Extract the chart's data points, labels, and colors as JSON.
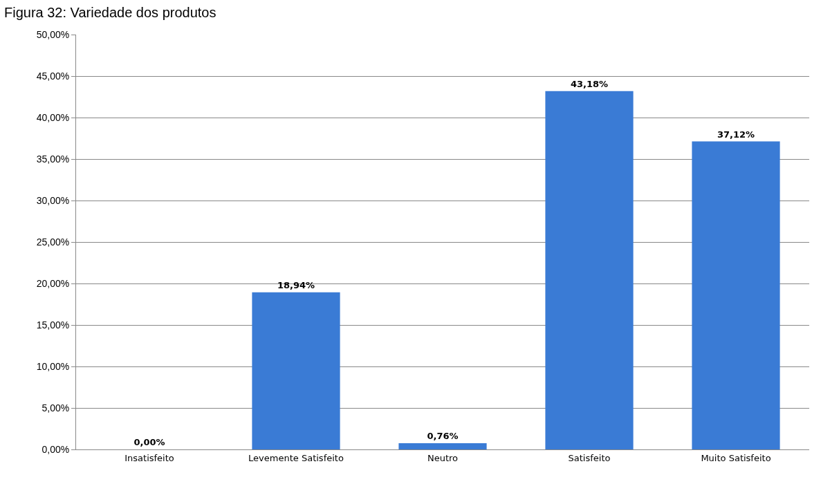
{
  "chart_data": {
    "type": "bar",
    "title": "Figura 32: Variedade dos produtos",
    "categories": [
      "Insatisfeito",
      "Levemente Satisfeito",
      "Neutro",
      "Satisfeito",
      "Muito Satisfeito"
    ],
    "values": [
      0,
      18.94,
      0.76,
      43.18,
      37.12
    ],
    "value_labels": [
      "0,00%",
      "18,94%",
      "0,76%",
      "43,18%",
      "37,12%"
    ],
    "color": "#3a7bd5",
    "ylim": [
      0,
      50
    ],
    "yticks": [
      {
        "value": 0,
        "label": "0,00%"
      },
      {
        "value": 5,
        "label": "5,00%"
      },
      {
        "value": 10,
        "label": "10,00%"
      },
      {
        "value": 15,
        "label": "15,00%"
      },
      {
        "value": 20,
        "label": "20,00%"
      },
      {
        "value": 25,
        "label": "25,00%"
      },
      {
        "value": 30,
        "label": "30,00%"
      },
      {
        "value": 35,
        "label": "35,00%"
      },
      {
        "value": 40,
        "label": "40,00%"
      },
      {
        "value": 45,
        "label": "45,00%"
      },
      {
        "value": 50,
        "label": "50,00%"
      }
    ],
    "grid": "y"
  }
}
